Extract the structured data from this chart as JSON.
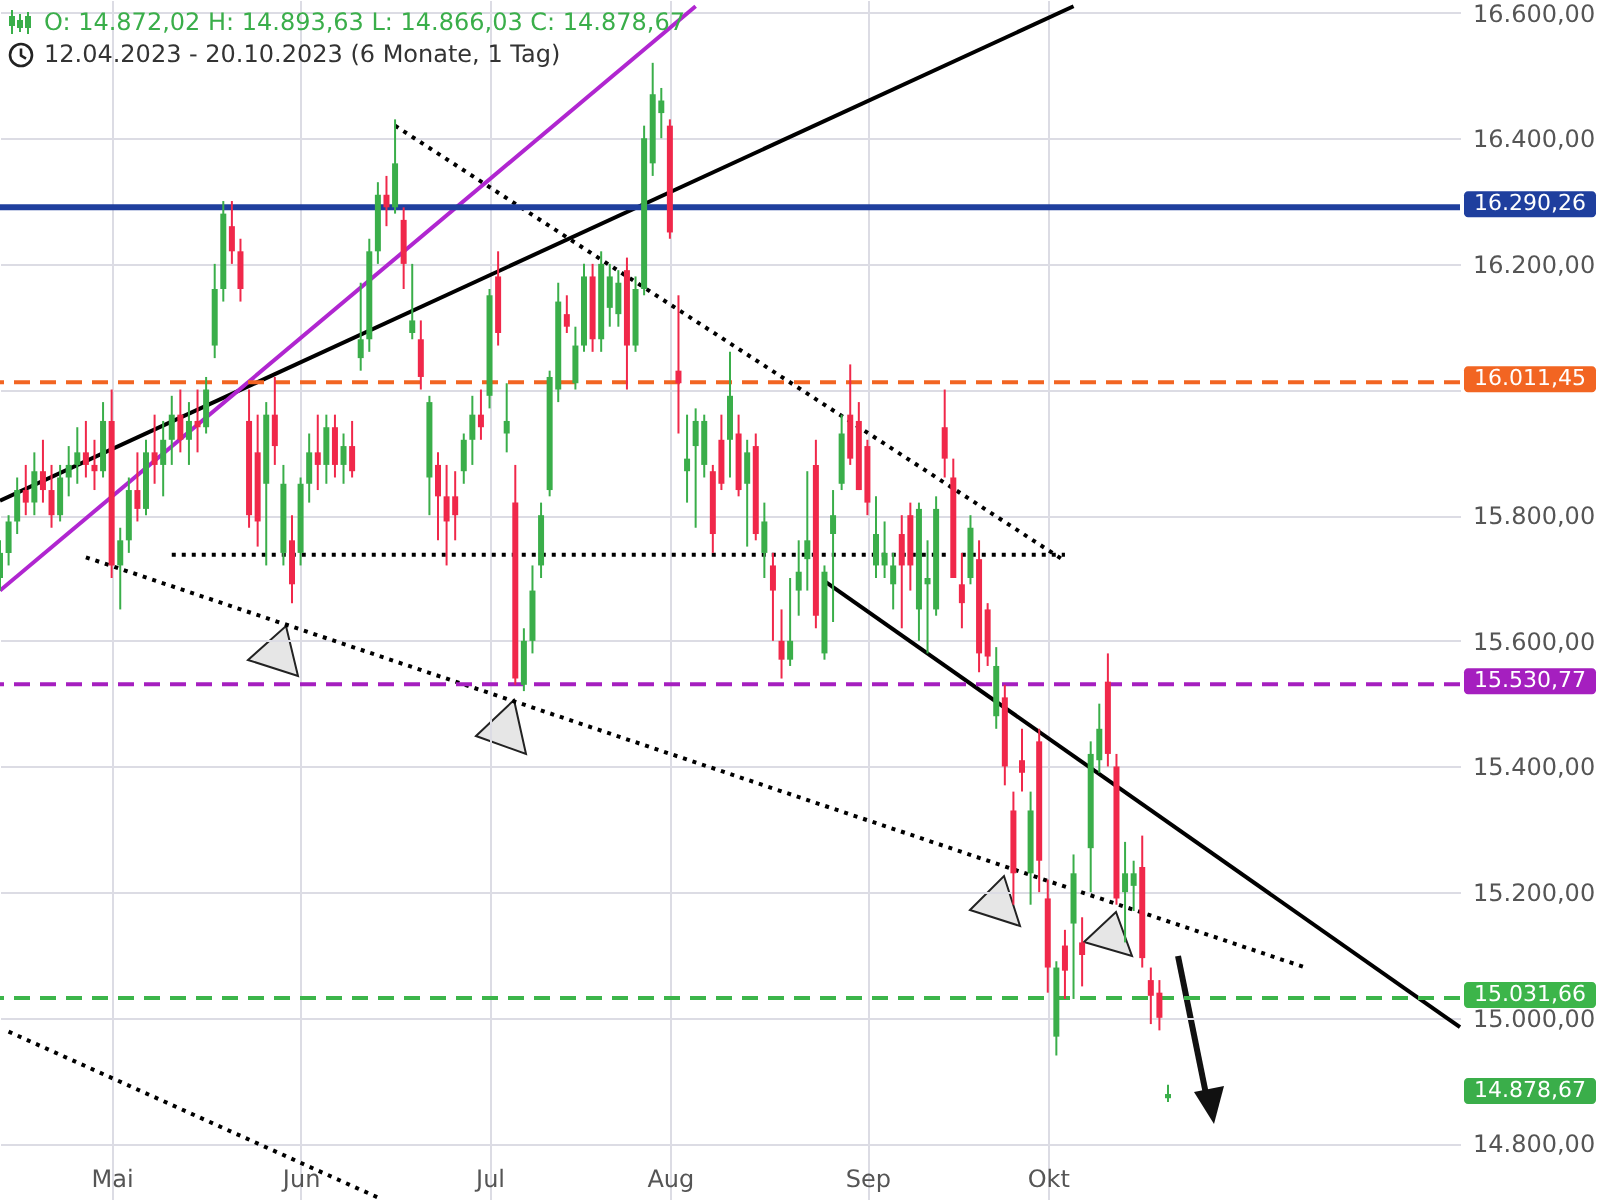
{
  "chart_data": {
    "type": "candlestick",
    "title": "O: 14.872,02  H: 14.893,63  L: 14.866,03  C: 14.878,67",
    "subtitle": "12.04.2023 - 20.10.2023   (6 Monate, 1 Tag)",
    "categories": [
      null,
      null,
      null,
      null,
      null,
      null,
      null,
      null,
      null,
      null,
      null,
      null,
      null,
      "Mai",
      null,
      null,
      null,
      null,
      null,
      null,
      null,
      null,
      null,
      null,
      null,
      null,
      null,
      null,
      null,
      null,
      null,
      null,
      null,
      null,
      null,
      "Jun",
      null,
      null,
      null,
      null,
      null,
      null,
      null,
      null,
      null,
      null,
      null,
      null,
      null,
      null,
      null,
      null,
      null,
      null,
      null,
      null,
      null,
      "Jul",
      null,
      null,
      null,
      null,
      null,
      null,
      null,
      null,
      null,
      null,
      null,
      null,
      null,
      null,
      null,
      null,
      null,
      null,
      null,
      null,
      "Aug",
      null,
      null,
      null,
      null,
      null,
      null,
      null,
      null,
      null,
      null,
      null,
      null,
      null,
      null,
      null,
      null,
      null,
      null,
      null,
      null,
      null,
      null,
      "Sep",
      null,
      null,
      null,
      null,
      null,
      null,
      null,
      null,
      null,
      null,
      null,
      null,
      null,
      null,
      null,
      null,
      null,
      null,
      null,
      null,
      "Okt",
      null,
      null,
      null,
      null,
      null,
      null,
      null,
      null,
      null,
      null,
      null,
      null,
      null,
      null,
      null,
      null,
      null,
      null,
      null,
      null,
      null,
      null,
      null,
      null,
      null,
      null,
      null,
      null,
      null,
      null,
      null,
      null,
      null,
      null,
      null,
      null,
      null,
      null,
      null,
      null,
      null,
      null,
      null,
      null,
      null,
      null,
      null,
      null
    ],
    "ohlc": [
      [
        15700,
        15760,
        15680,
        15740
      ],
      [
        15740,
        15800,
        15720,
        15790
      ],
      [
        15790,
        15860,
        15770,
        15840
      ],
      [
        15840,
        15880,
        15800,
        15820
      ],
      [
        15820,
        15900,
        15800,
        15870
      ],
      [
        15870,
        15920,
        15820,
        15840
      ],
      [
        15840,
        15880,
        15780,
        15800
      ],
      [
        15800,
        15880,
        15790,
        15860
      ],
      [
        15860,
        15910,
        15830,
        15880
      ],
      [
        15880,
        15940,
        15850,
        15900
      ],
      [
        15900,
        15950,
        15860,
        15880
      ],
      [
        15880,
        15920,
        15840,
        15870
      ],
      [
        15870,
        15980,
        15860,
        15950
      ],
      [
        15950,
        16000,
        15700,
        15720
      ],
      [
        15720,
        15780,
        15650,
        15760
      ],
      [
        15760,
        15860,
        15740,
        15840
      ],
      [
        15840,
        15900,
        15790,
        15810
      ],
      [
        15810,
        15920,
        15800,
        15900
      ],
      [
        15900,
        15960,
        15850,
        15880
      ],
      [
        15880,
        15950,
        15830,
        15920
      ],
      [
        15920,
        15990,
        15880,
        15960
      ],
      [
        15960,
        16000,
        15900,
        15920
      ],
      [
        15920,
        15980,
        15880,
        15950
      ],
      [
        15950,
        16000,
        15900,
        15940
      ],
      [
        15940,
        16020,
        15930,
        16000
      ],
      [
        16070,
        16200,
        16050,
        16160
      ],
      [
        16160,
        16300,
        16140,
        16280
      ],
      [
        16260,
        16300,
        16200,
        16220
      ],
      [
        16220,
        16240,
        16140,
        16160
      ],
      [
        15950,
        16000,
        15780,
        15800
      ],
      [
        15900,
        15960,
        15750,
        15790
      ],
      [
        15850,
        15980,
        15720,
        15960
      ],
      [
        15960,
        16020,
        15880,
        15910
      ],
      [
        15740,
        15880,
        15720,
        15850
      ],
      [
        15760,
        15800,
        15660,
        15690
      ],
      [
        15740,
        15860,
        15720,
        15850
      ],
      [
        15850,
        15930,
        15820,
        15900
      ],
      [
        15900,
        15960,
        15840,
        15880
      ],
      [
        15880,
        15960,
        15850,
        15940
      ],
      [
        15940,
        15960,
        15860,
        15880
      ],
      [
        15880,
        15930,
        15850,
        15910
      ],
      [
        15910,
        15950,
        15860,
        15870
      ],
      [
        16050,
        16170,
        16030,
        16080
      ],
      [
        16080,
        16240,
        16060,
        16220
      ],
      [
        16220,
        16330,
        16200,
        16310
      ],
      [
        16310,
        16340,
        16260,
        16290
      ],
      [
        16290,
        16430,
        16280,
        16360
      ],
      [
        16270,
        16290,
        16160,
        16200
      ],
      [
        16090,
        16200,
        16080,
        16110
      ],
      [
        16080,
        16110,
        16000,
        16020
      ],
      [
        15860,
        15990,
        15800,
        15980
      ],
      [
        15880,
        15900,
        15760,
        15830
      ],
      [
        15830,
        15880,
        15720,
        15790
      ],
      [
        15830,
        15870,
        15760,
        15800
      ],
      [
        15870,
        15930,
        15850,
        15920
      ],
      [
        15920,
        15990,
        15880,
        15960
      ],
      [
        15960,
        16000,
        15920,
        15940
      ],
      [
        15990,
        16160,
        15970,
        16150
      ],
      [
        16180,
        16220,
        16070,
        16090
      ],
      [
        15930,
        16010,
        15900,
        15950
      ],
      [
        15820,
        15880,
        15530,
        15540
      ],
      [
        15530,
        15620,
        15520,
        15600
      ],
      [
        15600,
        15720,
        15580,
        15680
      ],
      [
        15720,
        15820,
        15700,
        15800
      ],
      [
        15840,
        16030,
        15830,
        16020
      ],
      [
        16000,
        16170,
        15980,
        16140
      ],
      [
        16120,
        16150,
        16090,
        16100
      ],
      [
        16010,
        16100,
        16000,
        16070
      ],
      [
        16070,
        16200,
        16060,
        16180
      ],
      [
        16180,
        16200,
        16060,
        16080
      ],
      [
        16080,
        16220,
        16060,
        16200
      ],
      [
        16130,
        16200,
        16100,
        16180
      ],
      [
        16120,
        16190,
        16100,
        16170
      ],
      [
        16190,
        16210,
        16000,
        16070
      ],
      [
        16070,
        16180,
        16060,
        16160
      ],
      [
        16160,
        16420,
        16150,
        16400
      ],
      [
        16360,
        16520,
        16340,
        16470
      ],
      [
        16440,
        16480,
        16400,
        16460
      ],
      [
        16420,
        16430,
        16240,
        16250
      ],
      [
        16030,
        16150,
        15930,
        16010
      ],
      [
        15870,
        15960,
        15820,
        15890
      ],
      [
        15910,
        15970,
        15780,
        15950
      ],
      [
        15880,
        15960,
        15860,
        15950
      ],
      [
        15870,
        15880,
        15740,
        15770
      ],
      [
        15920,
        15960,
        15840,
        15850
      ],
      [
        15920,
        16060,
        15860,
        15990
      ],
      [
        15930,
        15960,
        15830,
        15840
      ],
      [
        15850,
        15920,
        15750,
        15900
      ],
      [
        15910,
        15930,
        15760,
        15770
      ],
      [
        15740,
        15820,
        15700,
        15790
      ],
      [
        15720,
        15740,
        15600,
        15680
      ],
      [
        15600,
        15650,
        15540,
        15570
      ],
      [
        15570,
        15700,
        15560,
        15600
      ],
      [
        15680,
        15760,
        15640,
        15710
      ],
      [
        15730,
        15870,
        15680,
        15760
      ],
      [
        15880,
        15920,
        15620,
        15640
      ],
      [
        15580,
        15720,
        15570,
        15710
      ],
      [
        15770,
        15840,
        15630,
        15800
      ],
      [
        15850,
        15960,
        15840,
        15930
      ],
      [
        15960,
        16040,
        15880,
        15890
      ],
      [
        15950,
        15980,
        15840,
        15840
      ],
      [
        15910,
        15920,
        15800,
        15820
      ],
      [
        15720,
        15830,
        15700,
        15770
      ],
      [
        15720,
        15790,
        15700,
        15740
      ],
      [
        15690,
        15740,
        15650,
        15720
      ],
      [
        15770,
        15800,
        15620,
        15720
      ],
      [
        15800,
        15820,
        15680,
        15720
      ],
      [
        15650,
        15820,
        15600,
        15810
      ],
      [
        15690,
        15760,
        15580,
        15700
      ],
      [
        15650,
        15830,
        15640,
        15810
      ],
      [
        15940,
        16000,
        15860,
        15890
      ],
      [
        15860,
        15890,
        15700,
        15700
      ],
      [
        15690,
        15740,
        15620,
        15660
      ],
      [
        15700,
        15800,
        15690,
        15780
      ],
      [
        15730,
        15760,
        15550,
        15580
      ],
      [
        15650,
        15660,
        15560,
        15575
      ],
      [
        15480,
        15590,
        15460,
        15560
      ],
      [
        15510,
        15530,
        15370,
        15400
      ],
      [
        15330,
        15360,
        15180,
        15230
      ],
      [
        15410,
        15460,
        15360,
        15390
      ],
      [
        15230,
        15360,
        15180,
        15330
      ],
      [
        15440,
        15460,
        15200,
        15250
      ],
      [
        15190,
        15220,
        15040,
        15080
      ],
      [
        14970,
        15090,
        14940,
        15080
      ],
      [
        15115,
        15140,
        15030,
        15075
      ],
      [
        15150,
        15260,
        15030,
        15230
      ],
      [
        15120,
        15160,
        15050,
        15100
      ],
      [
        15270,
        15440,
        15200,
        15420
      ],
      [
        15410,
        15500,
        15390,
        15460
      ],
      [
        15535,
        15580,
        15400,
        15420
      ],
      [
        15400,
        15420,
        15180,
        15190
      ],
      [
        15200,
        15280,
        15120,
        15230
      ],
      [
        15210,
        15250,
        15170,
        15230
      ],
      [
        15240,
        15290,
        15080,
        15095
      ],
      [
        15060,
        15080,
        14990,
        15035
      ],
      [
        15040,
        15060,
        14980,
        15000
      ],
      [
        14872.02,
        14893.63,
        14866.03,
        14878.67
      ],
      null,
      null,
      null,
      null,
      null,
      null,
      null,
      null,
      null,
      null,
      null,
      null,
      null,
      null,
      null,
      null,
      null,
      null,
      null,
      null,
      null,
      null,
      null,
      null,
      null,
      null,
      null,
      null,
      null,
      null,
      null,
      null,
      null,
      null
    ],
    "series": [
      {
        "type": "line",
        "color": "#000000",
        "line_style": "solid",
        "values": [
          15823,
          null,
          null,
          null,
          null,
          null,
          null,
          null,
          null,
          null,
          null,
          null,
          null,
          null,
          null,
          null,
          null,
          null,
          null,
          null,
          null,
          null,
          null,
          null,
          null,
          null,
          null,
          null,
          null,
          null,
          null,
          null,
          null,
          null,
          null,
          null,
          null,
          null,
          null,
          null,
          null,
          null,
          null,
          null,
          null,
          null,
          null,
          null,
          null,
          null,
          null,
          null,
          null,
          null,
          null,
          null,
          null,
          null,
          null,
          null,
          null,
          null,
          null,
          null,
          null,
          null,
          null,
          null,
          null,
          null,
          null,
          null,
          null,
          null,
          null,
          null,
          null,
          null,
          null,
          null,
          null,
          null,
          null,
          null,
          null,
          null,
          null,
          null,
          null,
          null,
          null,
          null,
          null,
          null,
          null,
          null,
          null,
          null,
          null,
          null,
          null,
          null,
          null,
          null,
          null,
          null,
          null,
          null,
          null,
          null,
          null,
          null,
          null,
          null,
          null,
          null,
          null,
          null,
          null,
          null,
          null,
          null,
          null,
          null,
          null,
          16610,
          null,
          null,
          null,
          null,
          null,
          null,
          null,
          null,
          null,
          null,
          null,
          null,
          null,
          null,
          null,
          null,
          null,
          null,
          null,
          null,
          null,
          null,
          null,
          null,
          null,
          null,
          null,
          null,
          null,
          null,
          null,
          null,
          null,
          null,
          null,
          null,
          null,
          null,
          null,
          null,
          null,
          null,
          null,
          null,
          null
        ]
      },
      {
        "type": "line",
        "color": "#b026d0",
        "line_style": "solid",
        "values": [
          15680,
          null,
          null,
          null,
          null,
          null,
          null,
          null,
          null,
          null,
          null,
          null,
          null,
          null,
          null,
          null,
          null,
          null,
          null,
          null,
          null,
          null,
          null,
          null,
          null,
          null,
          null,
          null,
          null,
          null,
          null,
          null,
          null,
          null,
          null,
          null,
          null,
          null,
          null,
          null,
          null,
          null,
          null,
          null,
          null,
          null,
          null,
          null,
          null,
          null,
          null,
          null,
          null,
          null,
          null,
          null,
          null,
          null,
          null,
          null,
          null,
          null,
          null,
          null,
          null,
          null,
          null,
          null,
          null,
          null,
          null,
          null,
          null,
          null,
          null,
          null,
          null,
          null,
          null,
          null,
          null,
          16610,
          null,
          null,
          null,
          null,
          null,
          null,
          null,
          null,
          null,
          null,
          null,
          null,
          null,
          null,
          null,
          null,
          null,
          null,
          null,
          null,
          null,
          null,
          null,
          null,
          null,
          null,
          null,
          null,
          null,
          null,
          null,
          null,
          null,
          null,
          null,
          null,
          null,
          null,
          null,
          null,
          null,
          null,
          null,
          null,
          null,
          null,
          null,
          null,
          null,
          null,
          null,
          null,
          null,
          null,
          null,
          null,
          null,
          null,
          null,
          null,
          null,
          null,
          null,
          null,
          null,
          null,
          null,
          null,
          null,
          null,
          null,
          null,
          null,
          null,
          null,
          null,
          null,
          null,
          null,
          null,
          null,
          null,
          null,
          null,
          null,
          null,
          null,
          null,
          null
        ]
      },
      {
        "type": "line",
        "color": "#000000",
        "line_style": "dotted",
        "values": [
          null,
          null,
          null,
          null,
          null,
          null,
          null,
          null,
          null,
          null,
          null,
          null,
          null,
          null,
          null,
          null,
          null,
          null,
          null,
          null,
          null,
          null,
          null,
          null,
          null,
          null,
          null,
          null,
          null,
          null,
          null,
          null,
          null,
          null,
          null,
          null,
          null,
          null,
          null,
          null,
          null,
          null,
          null,
          null,
          null,
          null,
          16420,
          null,
          null,
          null,
          null,
          null,
          null,
          null,
          null,
          null,
          null,
          null,
          null,
          null,
          null,
          null,
          null,
          null,
          null,
          null,
          null,
          null,
          null,
          null,
          null,
          null,
          null,
          null,
          null,
          null,
          null,
          null,
          null,
          null,
          null,
          null,
          null,
          null,
          null,
          null,
          null,
          null,
          null,
          null,
          null,
          null,
          null,
          null,
          null,
          null,
          null,
          null,
          null,
          null,
          null,
          null,
          null,
          null,
          null,
          null,
          null,
          null,
          null,
          null,
          null,
          null,
          null,
          null,
          null,
          null,
          null,
          null,
          null,
          null,
          null,
          null,
          null,
          null,
          15727,
          null,
          null,
          null,
          null,
          null,
          null,
          null,
          null,
          null,
          null,
          null,
          null,
          null,
          null,
          null,
          null,
          null,
          null,
          null,
          null,
          null,
          null,
          null,
          null,
          null,
          null,
          null,
          null,
          null,
          null,
          null,
          null,
          null,
          null,
          null,
          null,
          null,
          null,
          null,
          null,
          null,
          null,
          null,
          null,
          null,
          null
        ]
      },
      {
        "type": "line",
        "color": "#000000",
        "line_style": "dotted",
        "values": [
          null,
          null,
          null,
          null,
          null,
          null,
          null,
          null,
          null,
          null,
          null,
          null,
          null,
          null,
          null,
          null,
          null,
          null,
          null,
          null,
          15737,
          null,
          null,
          null,
          null,
          null,
          null,
          null,
          null,
          null,
          null,
          null,
          null,
          null,
          null,
          null,
          null,
          null,
          null,
          null,
          null,
          null,
          null,
          null,
          null,
          null,
          null,
          null,
          null,
          null,
          null,
          null,
          null,
          null,
          null,
          null,
          null,
          null,
          null,
          null,
          null,
          null,
          null,
          null,
          null,
          null,
          null,
          null,
          null,
          null,
          null,
          null,
          null,
          null,
          null,
          null,
          null,
          null,
          null,
          null,
          null,
          null,
          null,
          null,
          null,
          null,
          null,
          null,
          null,
          null,
          null,
          null,
          null,
          null,
          null,
          null,
          null,
          null,
          null,
          null,
          null,
          null,
          null,
          null,
          null,
          null,
          null,
          null,
          null,
          null,
          null,
          null,
          null,
          null,
          null,
          null,
          null,
          null,
          null,
          null,
          null,
          null,
          null,
          null,
          15737,
          null,
          null,
          null,
          null,
          null,
          null,
          null,
          null,
          null,
          null,
          null,
          null,
          null,
          null,
          null,
          null,
          null,
          null,
          null,
          null,
          null,
          null,
          null,
          null,
          null,
          null,
          null,
          null,
          null,
          null,
          null,
          null,
          null,
          null,
          null,
          null,
          null,
          null,
          null,
          null,
          null,
          null,
          null,
          null,
          null,
          null
        ]
      },
      {
        "type": "line",
        "color": "#000000",
        "line_style": "dotted",
        "values": [
          null,
          null,
          null,
          null,
          null,
          null,
          null,
          null,
          null,
          null,
          15733,
          null,
          null,
          null,
          null,
          null,
          null,
          null,
          null,
          null,
          null,
          null,
          null,
          null,
          null,
          null,
          null,
          null,
          null,
          null,
          null,
          null,
          null,
          null,
          null,
          null,
          null,
          null,
          null,
          null,
          null,
          null,
          null,
          null,
          null,
          null,
          null,
          null,
          null,
          null,
          null,
          null,
          null,
          null,
          null,
          null,
          null,
          null,
          null,
          null,
          null,
          null,
          null,
          null,
          null,
          null,
          null,
          null,
          null,
          null,
          null,
          null,
          null,
          null,
          null,
          null,
          null,
          null,
          null,
          null,
          null,
          null,
          null,
          null,
          null,
          null,
          null,
          null,
          null,
          null,
          null,
          null,
          null,
          null,
          null,
          null,
          null,
          null,
          null,
          null,
          null,
          null,
          null,
          null,
          null,
          null,
          null,
          null,
          null,
          null,
          null,
          null,
          null,
          null,
          null,
          null,
          null,
          null,
          null,
          null,
          null,
          null,
          null,
          null,
          null,
          null,
          null,
          null,
          null,
          null,
          null,
          null,
          null,
          null,
          null,
          null,
          null,
          null,
          null,
          null,
          null,
          null,
          null,
          null,
          null,
          null,
          null,
          null,
          null,
          null,
          null,
          null,
          15080,
          null,
          null,
          null,
          null,
          null,
          null,
          null,
          null,
          null,
          null,
          null,
          null,
          null,
          null,
          null,
          null,
          null,
          null
        ]
      },
      {
        "type": "line",
        "color": "#000000",
        "line_style": "solid",
        "values": [
          null,
          null,
          null,
          null,
          null,
          null,
          null,
          null,
          null,
          null,
          null,
          null,
          null,
          null,
          null,
          null,
          null,
          null,
          null,
          null,
          null,
          null,
          null,
          null,
          null,
          null,
          null,
          null,
          null,
          null,
          null,
          null,
          null,
          null,
          null,
          null,
          null,
          null,
          null,
          null,
          null,
          null,
          null,
          null,
          null,
          null,
          null,
          null,
          null,
          null,
          null,
          null,
          null,
          null,
          null,
          null,
          null,
          null,
          null,
          null,
          null,
          null,
          null,
          null,
          null,
          null,
          null,
          null,
          null,
          null,
          null,
          null,
          null,
          null,
          null,
          null,
          null,
          null,
          null,
          null,
          null,
          null,
          null,
          null,
          null,
          null,
          null,
          null,
          null,
          null,
          null,
          null,
          null,
          null,
          null,
          null,
          15695,
          null,
          null,
          null,
          null,
          null,
          null,
          null,
          null,
          null,
          null,
          null,
          null,
          null,
          null,
          null,
          null,
          null,
          null,
          null,
          null,
          null,
          null,
          null,
          null,
          null,
          null,
          null,
          null,
          null,
          null,
          null,
          null,
          null,
          null,
          null,
          null,
          null,
          null,
          null,
          null,
          null,
          null,
          null,
          null,
          null,
          null,
          null,
          null,
          null,
          null,
          null,
          null,
          null,
          null,
          null,
          null,
          null,
          null,
          null,
          null,
          null,
          null,
          null,
          null,
          null,
          null,
          null,
          null,
          null,
          null,
          null,
          null,
          null,
          14985
        ]
      },
      {
        "type": "line",
        "color": "#000000",
        "line_style": "dotted",
        "values": [
          null,
          14978,
          null,
          null,
          null,
          null,
          null,
          null,
          null,
          null,
          null,
          null,
          null,
          null,
          null,
          null,
          null,
          null,
          null,
          null,
          null,
          null,
          null,
          null,
          null,
          null,
          null,
          null,
          null,
          null,
          null,
          null,
          null,
          null,
          null,
          null,
          null,
          null,
          null,
          null,
          null,
          null,
          null,
          null,
          14714,
          null,
          null,
          null,
          null,
          null,
          null,
          null,
          null,
          null,
          null,
          null,
          null,
          null,
          null,
          null,
          null,
          null,
          null,
          null,
          null,
          null,
          null,
          null,
          null,
          null,
          null,
          null,
          null,
          null,
          null,
          null,
          null,
          null,
          null,
          null,
          null,
          null,
          null,
          null,
          null,
          null,
          null,
          null,
          null,
          null,
          null,
          null,
          null,
          null,
          null,
          null,
          null,
          null,
          null,
          null,
          null,
          null,
          null,
          null,
          null,
          null,
          null,
          null,
          null,
          null,
          null,
          null,
          null,
          null,
          null,
          null,
          null,
          null,
          null,
          null,
          null,
          null,
          null,
          null,
          null,
          null,
          null,
          null,
          null,
          null,
          null,
          null,
          null,
          null,
          null,
          null,
          null,
          null,
          null,
          null,
          null,
          null,
          null,
          null,
          null,
          null,
          null,
          null,
          null,
          null,
          null,
          null,
          null,
          null,
          null,
          null,
          null,
          null,
          null,
          null,
          null,
          null,
          null,
          null,
          null,
          null,
          null,
          null,
          null,
          null,
          null
        ]
      }
    ],
    "ylim": [
      14710,
      16620
    ],
    "yticks": [
      {
        "value": 14800,
        "label": "14.800,00"
      },
      {
        "value": 15000,
        "label": "15.000,00"
      },
      {
        "value": 15200,
        "label": "15.200,00"
      },
      {
        "value": 15400,
        "label": "15.400,00"
      },
      {
        "value": 15600,
        "label": "15.600,00"
      },
      {
        "value": 15800,
        "label": "15.800,00"
      },
      {
        "value": 16000,
        "label": null
      },
      {
        "value": 16200,
        "label": "16.200,00"
      },
      {
        "value": 16400,
        "label": "16.400,00"
      },
      {
        "value": 16600,
        "label": "16.600,00"
      }
    ],
    "ref_lines": [
      {
        "axis": "y",
        "value": 16290.26,
        "label": "16.290,26",
        "color": "#1f3f9e",
        "line_style": "solid"
      },
      {
        "axis": "y",
        "value": 16011.45,
        "label": "16.011,45",
        "color": "#f26522",
        "line_style": "dashed"
      },
      {
        "axis": "y",
        "value": 15530.77,
        "label": "15.530,77",
        "color": "#a51fbf",
        "line_style": "dashed"
      },
      {
        "axis": "y",
        "value": 15031.66,
        "label": "15.031,66",
        "color": "#3cb54a",
        "line_style": "dashed"
      }
    ],
    "annotations": [
      "14.878,67"
    ],
    "grid": true
  }
}
